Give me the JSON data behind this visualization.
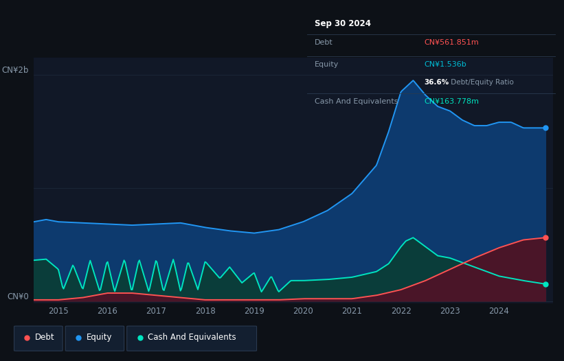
{
  "background_color": "#0d1117",
  "plot_bg_color": "#111827",
  "ylabel_top": "CN¥2b",
  "ylabel_bottom": "CN¥0",
  "x_ticks": [
    2015,
    2016,
    2017,
    2018,
    2019,
    2020,
    2021,
    2022,
    2023,
    2024
  ],
  "equity_color": "#2196f3",
  "equity_fill_color": "#0d3a6e",
  "debt_color": "#ff5252",
  "debt_fill_color": "#4a1528",
  "cash_color": "#00e5c0",
  "cash_fill_color": "#0a3d3a",
  "legend_items": [
    "Debt",
    "Equity",
    "Cash And Equivalents"
  ],
  "legend_colors": [
    "#ff5252",
    "#2196f3",
    "#00e5c0"
  ],
  "tooltip_title": "Sep 30 2024",
  "tooltip_debt_label": "Debt",
  "tooltip_debt_value": "CN¥561.851m",
  "tooltip_equity_label": "Equity",
  "tooltip_equity_value": "CN¥1.536b",
  "tooltip_ratio": "36.6% Debt/Equity Ratio",
  "tooltip_cash_label": "Cash And Equivalents",
  "tooltip_cash_value": "CN¥163.778m",
  "debt_color_tooltip": "#ff5252",
  "equity_color_tooltip": "#00bcd4",
  "cash_color_tooltip": "#00e5c0",
  "ylim_max": 2.15,
  "xlim_min": 2014.5,
  "xlim_max": 2025.1
}
